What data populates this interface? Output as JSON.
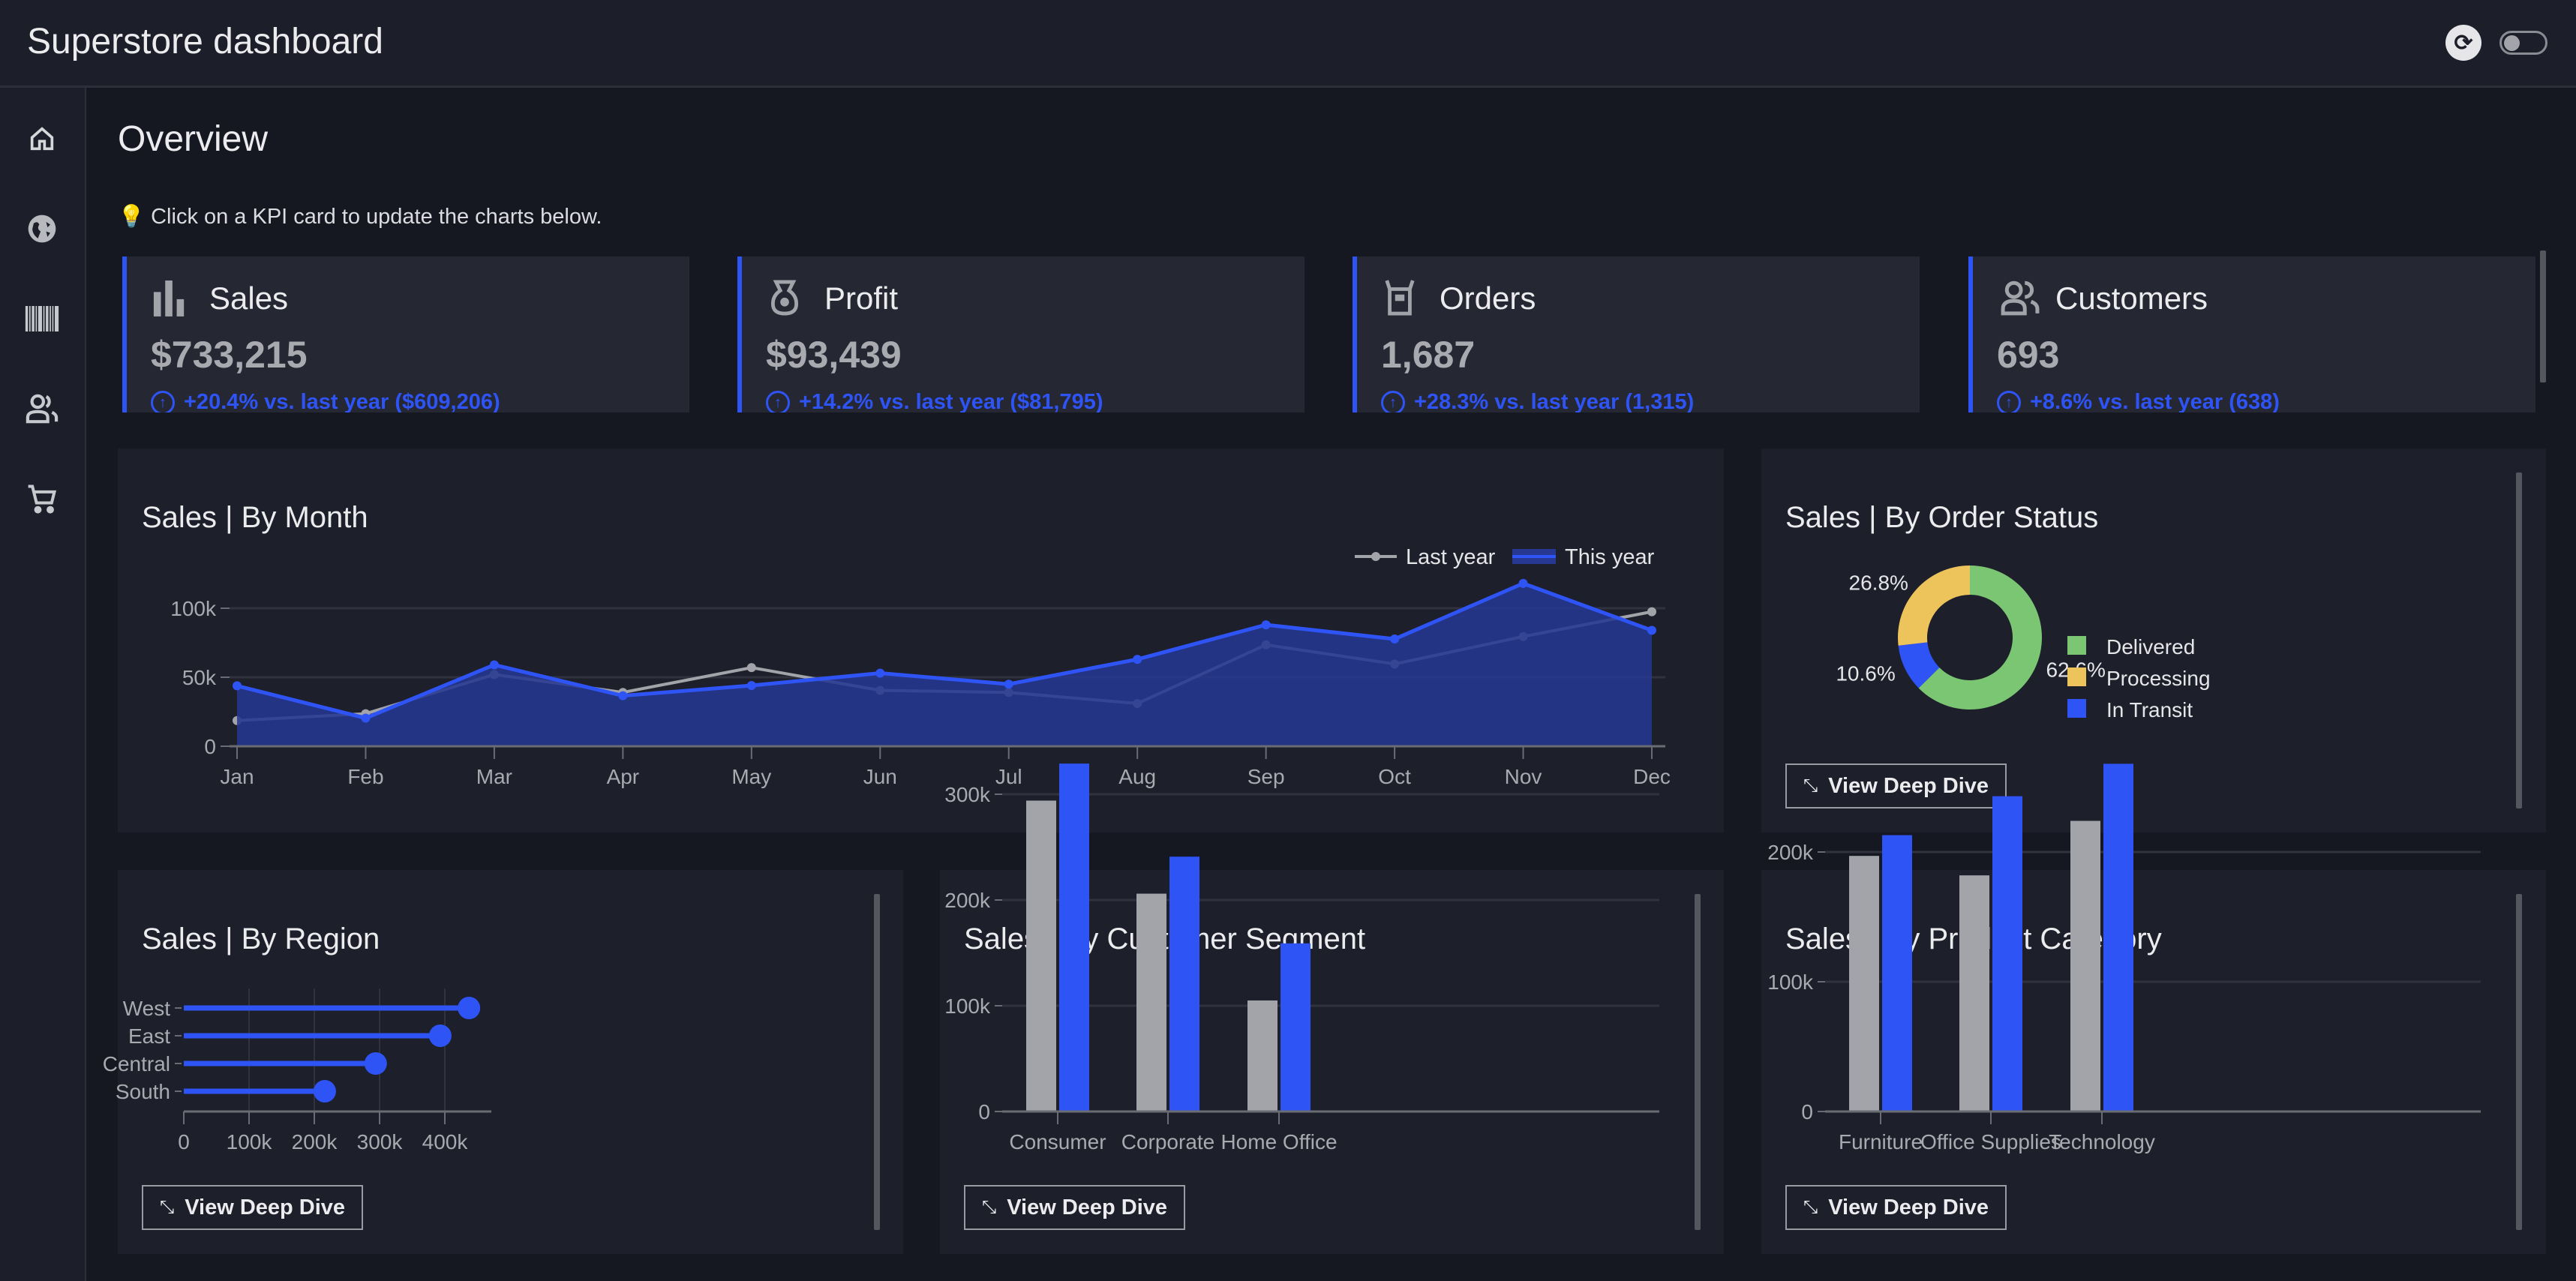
{
  "header": {
    "title": "Superstore dashboard",
    "theme_icon": "theme-settings-icon",
    "toggle_state": "off"
  },
  "sidebar": {
    "items": [
      {
        "name": "home",
        "icon": "home-icon"
      },
      {
        "name": "region",
        "icon": "globe-icon"
      },
      {
        "name": "product",
        "icon": "barcode-icon"
      },
      {
        "name": "customers",
        "icon": "users-icon"
      },
      {
        "name": "orders",
        "icon": "cart-icon"
      }
    ]
  },
  "main": {
    "title": "Overview",
    "hint_icon": "lightbulb-icon",
    "hint": "Click on a KPI card to update the charts below.",
    "kpis": [
      {
        "title": "Sales",
        "value": "$733,215",
        "delta": "+20.4% vs. last year ($609,206)",
        "icon": "bar-chart-icon"
      },
      {
        "title": "Profit",
        "value": "$93,439",
        "delta": "+14.2% vs. last year ($81,795)",
        "icon": "money-bag-icon"
      },
      {
        "title": "Orders",
        "value": "1,687",
        "delta": "+28.3% vs. last year (1,315)",
        "icon": "order-box-icon"
      },
      {
        "title": "Customers",
        "value": "693",
        "delta": "+8.6% vs. last year (638)",
        "icon": "users-icon"
      }
    ],
    "deep_dive_label": "View Deep Dive"
  },
  "colors": {
    "accent": "#2f54f5",
    "last_year": "#a3a4aa",
    "delivered": "#7bc673",
    "processing": "#edc45c",
    "in_transit": "#2f54f5",
    "area": "#263891"
  },
  "chart_data": [
    {
      "type": "area",
      "title": "Sales | By Month",
      "categories": [
        "Jan",
        "Feb",
        "Mar",
        "Apr",
        "May",
        "Jun",
        "Jul",
        "Aug",
        "Sep",
        "Oct",
        "Nov",
        "Dec"
      ],
      "yticks": [
        "0",
        "50k",
        "100k"
      ],
      "ytick_values": [
        0,
        50000,
        100000
      ],
      "legend": "top-right",
      "grid": true,
      "series": [
        {
          "name": "Last year",
          "values": [
            18600,
            23600,
            52000,
            39000,
            57000,
            40500,
            39000,
            31000,
            73500,
            59600,
            79500,
            97500
          ]
        },
        {
          "name": "This year",
          "values": [
            43800,
            20400,
            59000,
            36600,
            44000,
            53000,
            45000,
            63000,
            88000,
            77700,
            118000,
            84000
          ]
        }
      ]
    },
    {
      "type": "pie",
      "title": "Sales | By Order Status",
      "labels": [
        "Delivered",
        "Processing",
        "In Transit"
      ],
      "values": [
        62.6,
        26.8,
        10.6
      ],
      "value_labels": [
        "62.6%",
        "26.8%",
        "10.6%"
      ],
      "legend": "right",
      "donut": true
    },
    {
      "type": "bar",
      "orientation": "horizontal",
      "style": "lollipop",
      "title": "Sales | By Region",
      "categories": [
        "West",
        "East",
        "Central",
        "South"
      ],
      "values": [
        437000,
        393000,
        294000,
        216000
      ],
      "xticks": [
        "0",
        "100k",
        "200k",
        "300k",
        "400k"
      ],
      "xtick_values": [
        0,
        100000,
        200000,
        300000,
        400000
      ],
      "grid": true
    },
    {
      "type": "bar",
      "title": "Sales | By Customer Segment",
      "categories": [
        "Consumer",
        "Corporate",
        "Home Office"
      ],
      "yticks": [
        "0",
        "100k",
        "200k",
        "300k"
      ],
      "ytick_values": [
        0,
        100000,
        200000,
        300000
      ],
      "series": [
        {
          "values": [
            294000,
            206000,
            105000
          ]
        },
        {
          "values": [
            329000,
            241000,
            159000
          ]
        }
      ]
    },
    {
      "type": "bar",
      "title": "Sales | By Product Category",
      "categories": [
        "Furniture",
        "Office Supplies",
        "Technology"
      ],
      "yticks": [
        "0",
        "100k",
        "200k"
      ],
      "ytick_values": [
        0,
        100000,
        200000
      ],
      "series": [
        {
          "values": [
            197000,
            182000,
            224000
          ]
        },
        {
          "values": [
            213000,
            243000,
            268000
          ]
        }
      ]
    }
  ]
}
